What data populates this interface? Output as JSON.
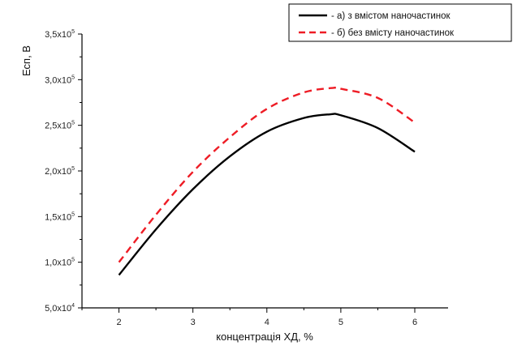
{
  "chart_data": {
    "type": "line",
    "title": "",
    "xlabel": "концентрація ХД, %",
    "ylabel": "Есп, В",
    "xlim": [
      1.5,
      6.45
    ],
    "ylim": [
      50000,
      350000
    ],
    "x_ticks": [
      2,
      3,
      4,
      5,
      6
    ],
    "y_ticks": [
      {
        "value": 50000,
        "mantissa": "5,0x10",
        "exp": "4"
      },
      {
        "value": 100000,
        "mantissa": "1,0x10",
        "exp": "5"
      },
      {
        "value": 150000,
        "mantissa": "1,5x10",
        "exp": "5"
      },
      {
        "value": 200000,
        "mantissa": "2,0x10",
        "exp": "5"
      },
      {
        "value": 250000,
        "mantissa": "2,5x10",
        "exp": "5"
      },
      {
        "value": 300000,
        "mantissa": "3,0x10",
        "exp": "5"
      },
      {
        "value": 350000,
        "mantissa": "3,5x10",
        "exp": "5"
      }
    ],
    "legend_position": "top-right",
    "series": [
      {
        "name": "- а) з вмістом наночастинок",
        "color": "#000000",
        "style": "solid",
        "x": [
          2,
          2.5,
          3,
          3.5,
          4,
          4.5,
          4.85,
          5,
          5.5,
          6
        ],
        "y": [
          86000,
          136000,
          180000,
          216000,
          243000,
          258000,
          262000,
          261000,
          247000,
          221000
        ]
      },
      {
        "name": "- б) без вмісту наночастинок",
        "color": "#ee1c25",
        "style": "dashed",
        "x": [
          2,
          2.5,
          3,
          3.5,
          4,
          4.5,
          4.9,
          5,
          5.5,
          6
        ],
        "y": [
          100000,
          152000,
          199000,
          237000,
          268000,
          286000,
          291000,
          290000,
          280000,
          253000
        ]
      }
    ]
  }
}
